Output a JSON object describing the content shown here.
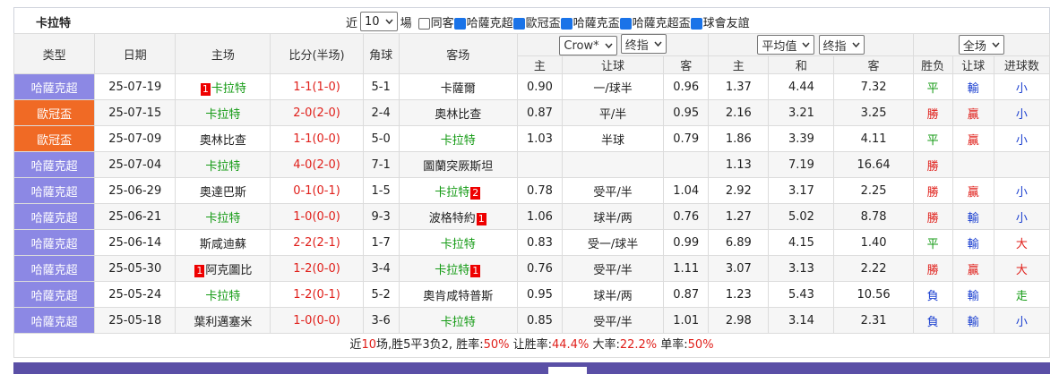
{
  "header": {
    "title": "卡拉特",
    "near": "近",
    "count": "10",
    "unit": "場",
    "checkboxes": [
      {
        "label": "同客",
        "checked": false
      },
      {
        "label": "哈薩克超",
        "checked": true
      },
      {
        "label": "歐冠盃",
        "checked": true
      },
      {
        "label": "哈薩克盃",
        "checked": true
      },
      {
        "label": "哈薩克超盃",
        "checked": true
      },
      {
        "label": "球會友誼",
        "checked": true
      }
    ]
  },
  "table": {
    "columns": [
      "类型",
      "日期",
      "主场",
      "比分(半场)",
      "角球",
      "客场"
    ],
    "selects": [
      "Crow*",
      "终指",
      "平均值",
      "终指",
      "全场"
    ],
    "subcolumns": [
      "主",
      "让球",
      "客",
      "主",
      "和",
      "客",
      "胜负",
      "让球",
      "进球数"
    ],
    "type_colors": {
      "哈薩克超": "#8c88e4",
      "歐冠盃": "#f06a25"
    },
    "result_colors": {
      "平": "#139a13",
      "勝": "#e0201b",
      "負": "#1a3fd0",
      "輸": "#1a3fd0",
      "贏": "#e0201b",
      "走": "#139a13",
      "大": "#e0201b",
      "小": "#1a3fd0"
    },
    "rows": [
      {
        "type": "哈薩克超",
        "date": "25-07-19",
        "home_card": "1",
        "home": "卡拉特",
        "score": "1-1(1-0)",
        "corner": "5-1",
        "away": "卡薩爾",
        "o_home": "0.90",
        "handicap": "一/球半",
        "o_away": "0.96",
        "e_home": "1.37",
        "e_draw": "4.44",
        "e_away": "7.32",
        "wl": "平",
        "hc": "輸",
        "ou": "小"
      },
      {
        "type": "歐冠盃",
        "date": "25-07-15",
        "home": "卡拉特",
        "score": "2-0(2-0)",
        "corner": "2-4",
        "away": "奧林比查",
        "o_home": "0.87",
        "handicap": "平/半",
        "o_away": "0.95",
        "e_home": "2.16",
        "e_draw": "3.21",
        "e_away": "3.25",
        "wl": "勝",
        "hc": "贏",
        "ou": "小"
      },
      {
        "type": "歐冠盃",
        "date": "25-07-09",
        "home": "奧林比查",
        "score": "1-1(0-0)",
        "corner": "5-0",
        "away": "卡拉特",
        "o_home": "1.03",
        "handicap": "半球",
        "o_away": "0.79",
        "e_home": "1.86",
        "e_draw": "3.39",
        "e_away": "4.11",
        "wl": "平",
        "hc": "贏",
        "ou": "小"
      },
      {
        "type": "哈薩克超",
        "date": "25-07-04",
        "home": "卡拉特",
        "score": "4-0(2-0)",
        "corner": "7-1",
        "away": "圖蘭突厥斯坦",
        "e_home": "1.13",
        "e_draw": "7.19",
        "e_away": "16.64",
        "wl": "勝"
      },
      {
        "type": "哈薩克超",
        "date": "25-06-29",
        "home": "奧達巴斯",
        "score": "0-1(0-1)",
        "corner": "1-5",
        "away": "卡拉特",
        "away_card": "2",
        "o_home": "0.78",
        "handicap": "受平/半",
        "o_away": "1.04",
        "e_home": "2.92",
        "e_draw": "3.17",
        "e_away": "2.25",
        "wl": "勝",
        "hc": "贏",
        "ou": "小"
      },
      {
        "type": "哈薩克超",
        "date": "25-06-21",
        "home": "卡拉特",
        "score": "1-0(0-0)",
        "corner": "9-3",
        "away": "波格特約",
        "away_card": "1",
        "o_home": "1.06",
        "handicap": "球半/两",
        "o_away": "0.76",
        "e_home": "1.27",
        "e_draw": "5.02",
        "e_away": "8.78",
        "wl": "勝",
        "hc": "輸",
        "ou": "小"
      },
      {
        "type": "哈薩克超",
        "date": "25-06-14",
        "home": "斯咸迪蘇",
        "score": "2-2(2-1)",
        "corner": "1-7",
        "away": "卡拉特",
        "o_home": "0.83",
        "handicap": "受一/球半",
        "o_away": "0.99",
        "e_home": "6.89",
        "e_draw": "4.15",
        "e_away": "1.40",
        "wl": "平",
        "hc": "輸",
        "ou": "大"
      },
      {
        "type": "哈薩克超",
        "date": "25-05-30",
        "home_card": "1",
        "home": "阿克圖比",
        "score": "1-2(0-0)",
        "corner": "3-4",
        "away": "卡拉特",
        "away_card": "1",
        "o_home": "0.76",
        "handicap": "受平/半",
        "o_away": "1.11",
        "e_home": "3.07",
        "e_draw": "3.13",
        "e_away": "2.22",
        "wl": "勝",
        "hc": "贏",
        "ou": "大"
      },
      {
        "type": "哈薩克超",
        "date": "25-05-24",
        "home": "卡拉特",
        "score": "1-2(0-1)",
        "corner": "5-2",
        "away": "奧肯咸特普斯",
        "o_home": "0.95",
        "handicap": "球半/两",
        "o_away": "0.87",
        "e_home": "1.23",
        "e_draw": "5.43",
        "e_away": "10.56",
        "wl": "負",
        "hc": "輸",
        "ou": "走"
      },
      {
        "type": "哈薩克超",
        "date": "25-05-18",
        "home": "葉利邁塞米",
        "score": "1-0(0-0)",
        "corner": "3-6",
        "away": "卡拉特",
        "o_home": "0.85",
        "handicap": "受平/半",
        "o_away": "1.01",
        "e_home": "2.98",
        "e_draw": "3.14",
        "e_away": "2.31",
        "wl": "負",
        "hc": "輸",
        "ou": "小"
      }
    ]
  },
  "summary": [
    {
      "text": "近"
    },
    {
      "text": "10",
      "red": true
    },
    {
      "text": "场,胜5平3负2, 胜率:"
    },
    {
      "text": "50%",
      "red": true
    },
    {
      "text": " 让胜率:"
    },
    {
      "text": "44.4%",
      "red": true
    },
    {
      "text": " 大率:"
    },
    {
      "text": "22.2%",
      "red": true
    },
    {
      "text": " 单率:"
    },
    {
      "text": "50%",
      "red": true
    }
  ]
}
